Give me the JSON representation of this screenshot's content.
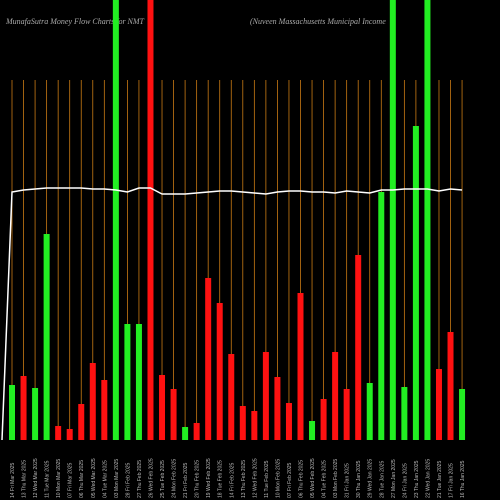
{
  "chart_data": {
    "type": "bar",
    "title": "MunafaSutra  Money Flow  Charts for NMT",
    "subtitle": "(Nuveen  Massachusetts  Municipal Income",
    "categories": [
      "14 Fri Mar 2025",
      "13 Thu Mar 2025",
      "12 Wed Mar 2025",
      "11 Tue Mar 2025",
      "10 Mon Mar 2025",
      "07 Fri Mar 2025",
      "06 Thu Mar 2025",
      "05 Wed Mar 2025",
      "04 Tue Mar 2025",
      "03 Mon Mar 2025",
      "28 Fri Feb 2025",
      "27 Thu Feb 2025",
      "26 Wed Feb 2025",
      "25 Tue Feb 2025",
      "24 Mon Feb 2025",
      "21 Fri Feb 2025",
      "20 Thu Feb 2025",
      "19 Wed Feb 2025",
      "18 Tue Feb 2025",
      "14 Fri Feb 2025",
      "13 Thu Feb 2025",
      "12 Wed Feb 2025",
      "11 Tue Feb 2025",
      "10 Mon Feb 2025",
      "07 Fri Feb 2025",
      "06 Thu Feb 2025",
      "05 Wed Feb 2025",
      "04 Tue Feb 2025",
      "03 Mon Feb 2025",
      "31 Fri Jan 2025",
      "30 Thu Jan 2025",
      "29 Wed Jan 2025",
      "28 Tue Jan 2025",
      "27 Mon Jan 2025",
      "24 Fri Jan 2025",
      "23 Thu Jan 2025",
      "22 Wed Jan 2025",
      "21 Tue Jan 2025",
      "17 Fri Jan 2025",
      "16 Thu Jan 2025"
    ],
    "values": [
      55,
      64,
      52,
      206,
      14,
      11,
      36,
      77,
      60,
      440,
      116,
      116,
      440,
      65,
      51,
      13,
      17,
      162,
      137,
      86,
      34,
      29,
      88,
      63,
      37,
      147,
      19,
      41,
      88,
      51,
      185,
      57,
      248,
      440,
      53,
      314,
      440,
      71,
      108,
      51
    ],
    "colors": [
      "#22ee22",
      "#ff1111",
      "#22ee22",
      "#22ee22",
      "#ff1111",
      "#ff1111",
      "#ff1111",
      "#ff1111",
      "#ff1111",
      "#22ee22",
      "#22ee22",
      "#22ee22",
      "#ff1111",
      "#ff1111",
      "#ff1111",
      "#22ee22",
      "#ff1111",
      "#ff1111",
      "#ff1111",
      "#ff1111",
      "#ff1111",
      "#ff1111",
      "#ff1111",
      "#ff1111",
      "#ff1111",
      "#ff1111",
      "#22ee22",
      "#ff1111",
      "#ff1111",
      "#ff1111",
      "#ff1111",
      "#22ee22",
      "#22ee22",
      "#22ee22",
      "#22ee22",
      "#22ee22",
      "#22ee22",
      "#ff1111",
      "#ff1111",
      "#22ee22"
    ],
    "line": {
      "color": "#ffffff",
      "values": [
        248,
        250,
        251,
        252,
        252,
        252,
        252,
        251,
        251,
        250,
        248,
        252,
        252,
        246,
        246,
        246,
        247,
        248,
        249,
        249,
        248,
        247,
        246,
        248,
        249,
        249,
        248,
        248,
        247,
        249,
        248,
        247,
        250,
        250,
        251,
        251,
        251,
        249,
        251,
        250
      ]
    },
    "ylim": [
      0,
      440
    ],
    "grid_color": "#c87a14"
  }
}
